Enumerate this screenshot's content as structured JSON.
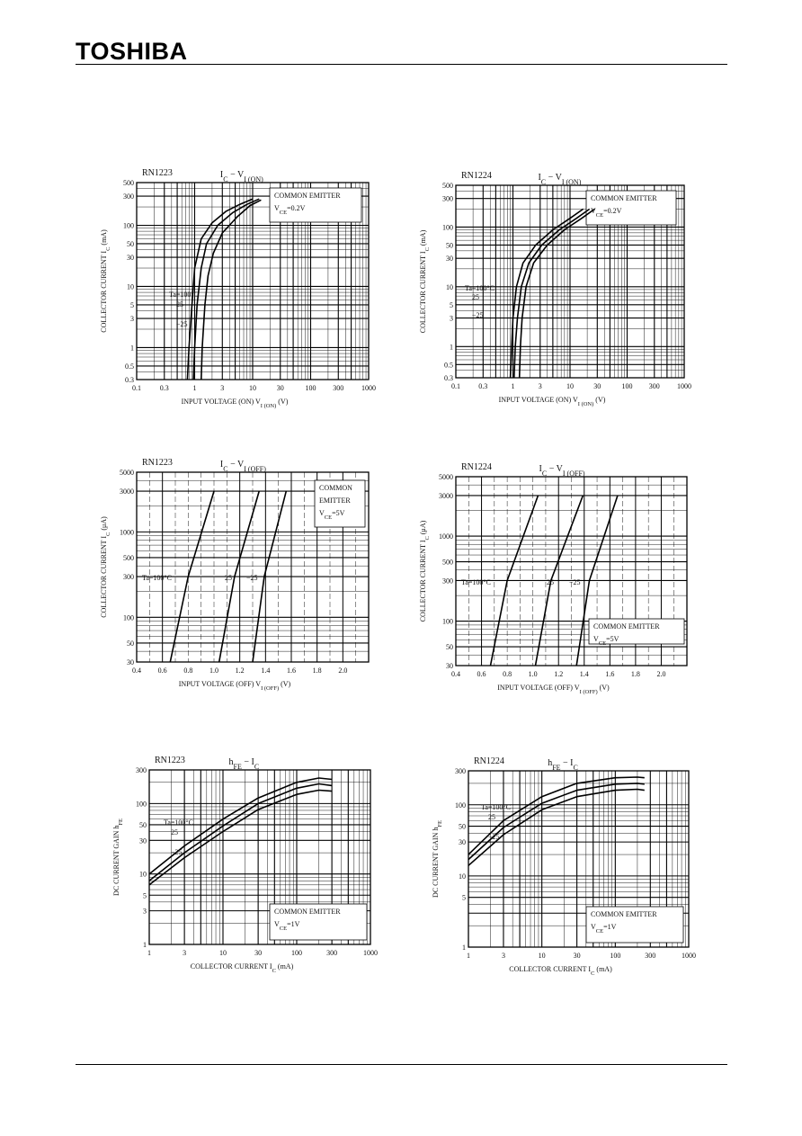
{
  "brand": "TOSHIBA",
  "chart_data": [
    {
      "id": "c1",
      "type": "line",
      "part": "RN1223",
      "title_main": "I",
      "title_sub": "C",
      "title_mid": " − V",
      "title_sub2": "I (ON)",
      "xscale": "log",
      "yscale": "log",
      "xlim": [
        0.1,
        1000
      ],
      "ylim": [
        0.3,
        500
      ],
      "x_ticks": [
        0.1,
        0.3,
        1,
        3,
        10,
        30,
        100,
        300,
        1000
      ],
      "x_tick_labels": [
        "0.1",
        "0.3",
        "1",
        "3",
        "10",
        "30",
        "100",
        "300",
        "1000"
      ],
      "y_ticks": [
        0.3,
        0.5,
        1,
        3,
        5,
        10,
        30,
        50,
        100,
        300,
        500
      ],
      "y_tick_labels": [
        "0.3",
        "0.5",
        "1",
        "3",
        "5",
        "10",
        "30",
        "50",
        "100",
        "300",
        "500"
      ],
      "xlabel_text": "INPUT VOLTAGE (ON)   V",
      "xlabel_sub": "I (ON)",
      "xlabel_unit": "   (V)",
      "ylabel_text": "COLLECTOR CURRENT   I",
      "ylabel_sub": "C",
      "ylabel_unit": "   (mA)",
      "note_lines": [
        "COMMON EMITTER",
        "V"
      ],
      "note_sub": "CE",
      "note_val": "=0.2V",
      "series": [
        {
          "label": "Ta=100°C",
          "x": [
            0.75,
            0.8,
            0.9,
            1.0,
            1.3,
            2,
            3.5,
            6,
            10
          ],
          "y": [
            0.3,
            1,
            5,
            20,
            60,
            110,
            170,
            220,
            270
          ]
        },
        {
          "label": "25",
          "x": [
            0.95,
            1.0,
            1.1,
            1.3,
            1.6,
            2.5,
            4.5,
            8,
            13
          ],
          "y": [
            0.3,
            1,
            5,
            20,
            50,
            100,
            160,
            220,
            270
          ]
        },
        {
          "label": "−25",
          "x": [
            1.3,
            1.35,
            1.5,
            1.7,
            2.1,
            3,
            5.5,
            9,
            14
          ],
          "y": [
            0.3,
            1,
            5,
            15,
            35,
            75,
            140,
            210,
            260
          ]
        }
      ]
    },
    {
      "id": "c2",
      "type": "line",
      "part": "RN1224",
      "title_main": "I",
      "title_sub": "C",
      "title_mid": " − V",
      "title_sub2": "I (ON)",
      "xscale": "log",
      "yscale": "log",
      "xlim": [
        0.1,
        1000
      ],
      "ylim": [
        0.3,
        500
      ],
      "x_ticks": [
        0.1,
        0.3,
        1,
        3,
        10,
        30,
        100,
        300,
        1000
      ],
      "x_tick_labels": [
        "0.1",
        "0.3",
        "1",
        "3",
        "10",
        "30",
        "100",
        "300",
        "1000"
      ],
      "y_ticks": [
        0.3,
        0.5,
        1,
        3,
        5,
        10,
        30,
        50,
        100,
        300,
        500
      ],
      "y_tick_labels": [
        "0.3",
        "0.5",
        "1",
        "3",
        "5",
        "10",
        "30",
        "50",
        "100",
        "300",
        "500"
      ],
      "xlabel_text": "INPUT VOLTAGE (ON)   V",
      "xlabel_sub": "I (ON)",
      "xlabel_unit": "   (V)",
      "ylabel_text": "COLLECTOR CURRENT   I",
      "ylabel_sub": "C",
      "ylabel_unit": "   (mA)",
      "note_lines": [
        "COMMON EMITTER",
        "V"
      ],
      "note_sub": "CE",
      "note_val": "=0.2V",
      "series": [
        {
          "label": "Ta=100°C",
          "x": [
            0.9,
            0.95,
            1.0,
            1.15,
            1.5,
            2.5,
            5,
            10,
            17
          ],
          "y": [
            0.3,
            1,
            3,
            10,
            25,
            50,
            90,
            140,
            200
          ]
        },
        {
          "label": "25",
          "x": [
            1.05,
            1.1,
            1.2,
            1.4,
            1.9,
            3.2,
            6.5,
            13,
            22
          ],
          "y": [
            0.3,
            1,
            3,
            10,
            25,
            50,
            90,
            140,
            200
          ]
        },
        {
          "label": "−25",
          "x": [
            1.3,
            1.35,
            1.45,
            1.7,
            2.3,
            4,
            8,
            16,
            27
          ],
          "y": [
            0.3,
            1,
            3,
            10,
            25,
            50,
            90,
            140,
            200
          ]
        }
      ]
    },
    {
      "id": "c3",
      "type": "line",
      "part": "RN1223",
      "title_main": "I",
      "title_sub": "C",
      "title_mid": " − V",
      "title_sub2": "I (OFF)",
      "xscale": "linear",
      "yscale": "log",
      "xlim": [
        0.4,
        2.2
      ],
      "ylim": [
        30,
        5000
      ],
      "x_ticks": [
        0.4,
        0.6,
        0.8,
        1.0,
        1.2,
        1.4,
        1.6,
        1.8,
        2.0
      ],
      "x_tick_labels": [
        "0.4",
        "0.6",
        "0.8",
        "1.0",
        "1.2",
        "1.4",
        "1.6",
        "1.8",
        "2.0"
      ],
      "y_ticks": [
        30,
        50,
        100,
        300,
        500,
        1000,
        3000,
        5000
      ],
      "y_tick_labels": [
        "30",
        "50",
        "100",
        "300",
        "500",
        "1000",
        "3000",
        "5000"
      ],
      "xlabel_text": "INPUT VOLTAGE (OFF)   V",
      "xlabel_sub": "I (OFF)",
      "xlabel_unit": "   (V)",
      "ylabel_text": "COLLECTOR CURRENT   I",
      "ylabel_sub": "C",
      "ylabel_unit": "   (μA)",
      "note_lines": [
        "COMMON",
        "EMITTER",
        "V"
      ],
      "note_sub": "CE",
      "note_val": "=5V",
      "series": [
        {
          "label": "Ta=100°C",
          "x": [
            0.66,
            0.8,
            1.0
          ],
          "y": [
            30,
            300,
            3000
          ]
        },
        {
          "label": "25",
          "x": [
            1.04,
            1.16,
            1.35
          ],
          "y": [
            30,
            300,
            3000
          ]
        },
        {
          "label": "−25",
          "x": [
            1.3,
            1.39,
            1.56
          ],
          "y": [
            30,
            300,
            3000
          ]
        }
      ]
    },
    {
      "id": "c4",
      "type": "line",
      "part": "RN1224",
      "title_main": "I",
      "title_sub": "C",
      "title_mid": " − V",
      "title_sub2": "I (OFF)",
      "xscale": "linear",
      "yscale": "log",
      "xlim": [
        0.4,
        2.2
      ],
      "ylim": [
        30,
        5000
      ],
      "x_ticks": [
        0.4,
        0.6,
        0.8,
        1.0,
        1.2,
        1.4,
        1.6,
        1.8,
        2.0
      ],
      "x_tick_labels": [
        "0.4",
        "0.6",
        "0.8",
        "1.0",
        "1.2",
        "1.4",
        "1.6",
        "1.8",
        "2.0"
      ],
      "y_ticks": [
        30,
        50,
        100,
        300,
        500,
        1000,
        3000,
        5000
      ],
      "y_tick_labels": [
        "30",
        "50",
        "100",
        "300",
        "500",
        "1000",
        "3000",
        "5000"
      ],
      "xlabel_text": "INPUT VOLTAGE (OFF)   V",
      "xlabel_sub": "I (OFF)",
      "xlabel_unit": "   (V)",
      "ylabel_text": "COLLECTOR CURRENT   I",
      "ylabel_sub": "C",
      "ylabel_unit": "   (μA)",
      "note_lines": [
        "COMMON EMITTER",
        "V"
      ],
      "note_sub": "CE",
      "note_val": "=5V",
      "series": [
        {
          "label": "Ta=100°C",
          "x": [
            0.67,
            0.8,
            1.04
          ],
          "y": [
            30,
            300,
            3000
          ]
        },
        {
          "label": "25",
          "x": [
            1.02,
            1.14,
            1.39
          ],
          "y": [
            30,
            300,
            3000
          ]
        },
        {
          "label": "−25",
          "x": [
            1.34,
            1.44,
            1.66
          ],
          "y": [
            30,
            300,
            3000
          ]
        }
      ]
    },
    {
      "id": "c5",
      "type": "line",
      "part": "RN1223",
      "title_main": "h",
      "title_sub": "FE",
      "title_mid": " − I",
      "title_sub2": "C",
      "xscale": "log",
      "yscale": "log",
      "xlim": [
        1,
        1000
      ],
      "ylim": [
        1,
        300
      ],
      "x_ticks": [
        1,
        3,
        10,
        30,
        100,
        300,
        1000
      ],
      "x_tick_labels": [
        "1",
        "3",
        "10",
        "30",
        "100",
        "300",
        "1000"
      ],
      "y_ticks": [
        1,
        3,
        5,
        10,
        30,
        50,
        100,
        300
      ],
      "y_tick_labels": [
        "1",
        "3",
        "5",
        "10",
        "30",
        "50",
        "100",
        "300"
      ],
      "xlabel_text": "COLLECTOR CURRENT   I",
      "xlabel_sub": "C",
      "xlabel_unit": "   (mA)",
      "ylabel_text": "DC CURRENT GAIN   h",
      "ylabel_sub": "FE",
      "ylabel_unit": "",
      "note_lines": [
        "COMMON EMITTER",
        "V"
      ],
      "note_sub": "CE",
      "note_val": "=1V",
      "series": [
        {
          "label": "Ta=100°C",
          "x": [
            1,
            3,
            10,
            30,
            100,
            200,
            300
          ],
          "y": [
            10,
            25,
            60,
            120,
            200,
            230,
            220
          ]
        },
        {
          "label": "25",
          "x": [
            1,
            3,
            10,
            30,
            100,
            200,
            300
          ],
          "y": [
            8,
            20,
            48,
            100,
            165,
            190,
            180
          ]
        },
        {
          "label": "−25",
          "x": [
            1,
            3,
            10,
            30,
            100,
            200,
            300
          ],
          "y": [
            7,
            17,
            40,
            82,
            135,
            155,
            150
          ]
        }
      ]
    },
    {
      "id": "c6",
      "type": "line",
      "part": "RN1224",
      "title_main": "h",
      "title_sub": "FE",
      "title_mid": " − I",
      "title_sub2": "C",
      "xscale": "log",
      "yscale": "log",
      "xlim": [
        1,
        1000
      ],
      "ylim": [
        1,
        300
      ],
      "x_ticks": [
        1,
        3,
        10,
        30,
        100,
        300,
        1000
      ],
      "x_tick_labels": [
        "1",
        "3",
        "10",
        "30",
        "100",
        "300",
        "1000"
      ],
      "y_ticks": [
        1,
        5,
        10,
        30,
        50,
        100,
        300
      ],
      "y_tick_labels": [
        "1",
        "5",
        "10",
        "30",
        "50",
        "100",
        "300"
      ],
      "xlabel_text": "COLLECTOR CURRENT   I",
      "xlabel_sub": "C",
      "xlabel_unit": "   (mA)",
      "ylabel_text": "DC CURRENT GAIN   h",
      "ylabel_sub": "FE",
      "ylabel_unit": "",
      "note_lines": [
        "COMMON EMITTER",
        "V"
      ],
      "note_sub": "CE",
      "note_val": "=1V",
      "series": [
        {
          "label": "Ta=100°C",
          "x": [
            1,
            3,
            10,
            30,
            100,
            200,
            250
          ],
          "y": [
            20,
            60,
            130,
            200,
            240,
            245,
            240
          ]
        },
        {
          "label": "25",
          "x": [
            1,
            3,
            10,
            30,
            100,
            200,
            250
          ],
          "y": [
            17,
            48,
            105,
            160,
            195,
            200,
            195
          ]
        },
        {
          "label": "−25",
          "x": [
            1,
            3,
            10,
            30,
            100,
            200,
            250
          ],
          "y": [
            14,
            38,
            85,
            130,
            160,
            165,
            160
          ]
        }
      ]
    }
  ]
}
